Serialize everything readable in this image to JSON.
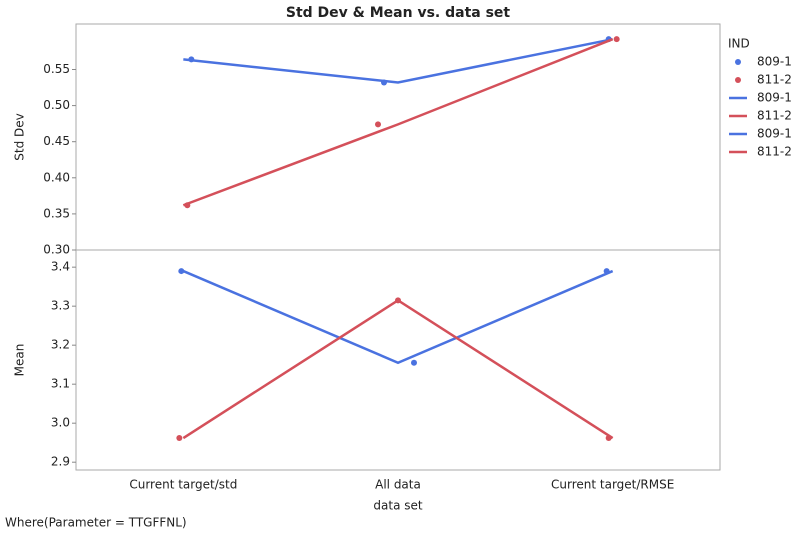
{
  "title": "Std Dev & Mean vs. data set",
  "x_label": "data set",
  "footnote": "Where(Parameter = TTGFFNL)",
  "legend_title": "IND",
  "categories": [
    "Current target/std",
    "All data",
    "Current target/RMSE"
  ],
  "chart_data": [
    {
      "type": "line",
      "y_label": "Std Dev",
      "ylim": [
        0.3,
        0.613
      ],
      "yticks": [
        {
          "value": 0.3,
          "label": "0.30"
        },
        0.35,
        {
          "value": 0.4,
          "label": "0.40"
        },
        0.45,
        {
          "value": 0.5,
          "label": "0.50"
        },
        0.55
      ],
      "series": [
        {
          "name": "809-1",
          "color": "#4a72e0",
          "values": [
            0.564,
            0.532,
            0.592
          ]
        },
        {
          "name": "811-2",
          "color": "#d4505a",
          "values": [
            0.362,
            0.474,
            0.592
          ]
        }
      ]
    },
    {
      "type": "line",
      "y_label": "Mean",
      "ylim": [
        2.88,
        3.444
      ],
      "yticks": [
        3.4,
        3.3,
        3.2,
        3.1,
        {
          "value": 3.0,
          "label": "3.0"
        },
        2.9
      ],
      "series": [
        {
          "name": "809-1",
          "color": "#4a72e0",
          "values": [
            3.39,
            3.155,
            3.39
          ]
        },
        {
          "name": "811-2",
          "color": "#d4505a",
          "values": [
            2.962,
            3.315,
            2.962
          ]
        }
      ]
    }
  ]
}
